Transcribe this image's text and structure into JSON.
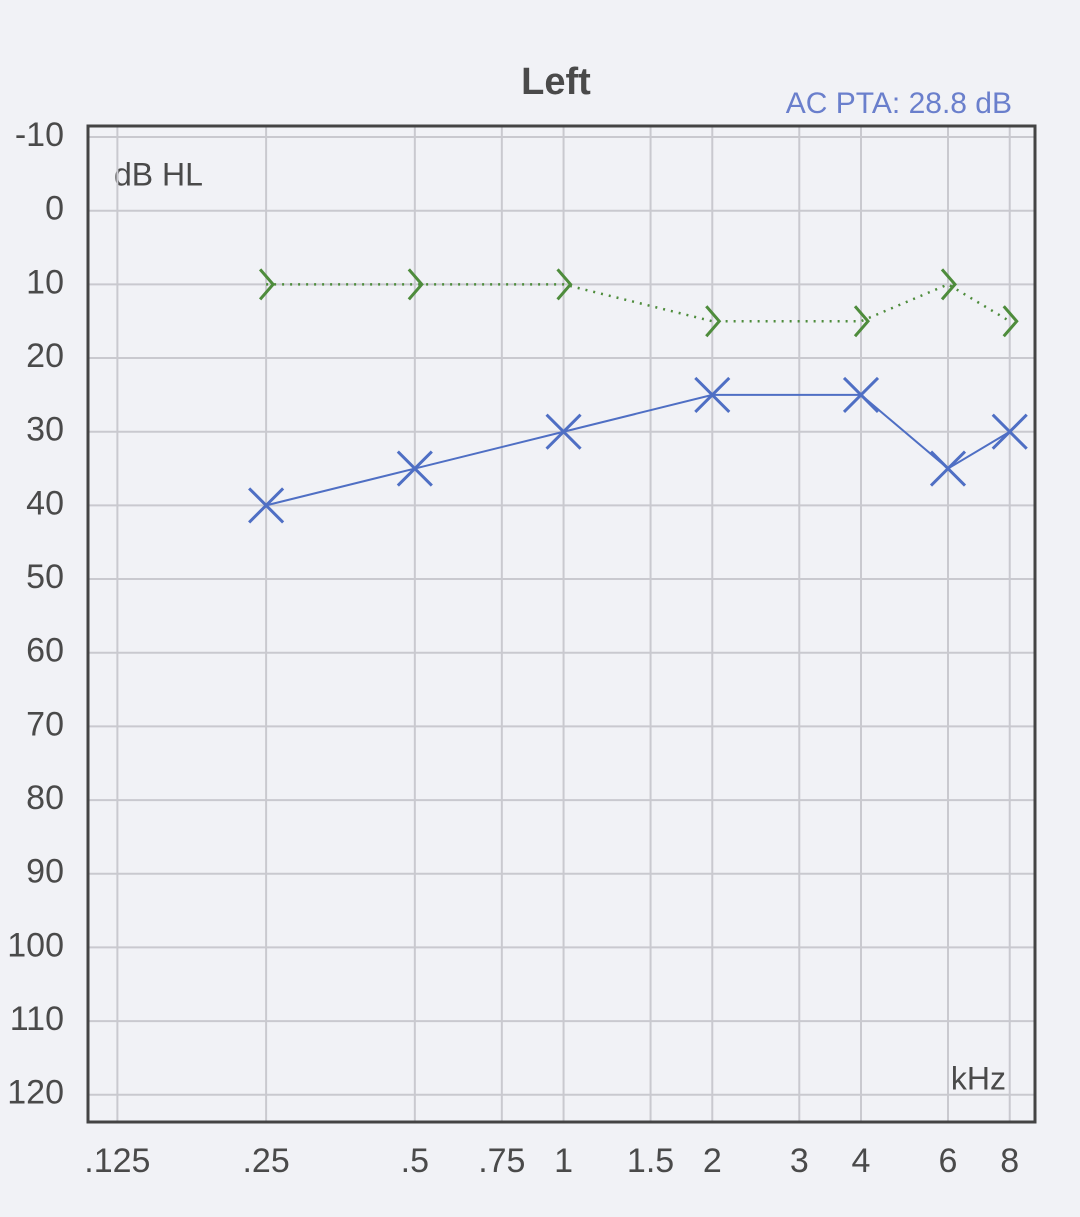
{
  "chart_data": {
    "type": "audiogram",
    "title": "Left",
    "annotation": "AC PTA: 28.8 dB",
    "ylabel": "dB HL",
    "xlabel": "kHz",
    "x": [
      0.25,
      0.5,
      1,
      2,
      4,
      6,
      8
    ],
    "series": [
      {
        "color": "#4f6fc4",
        "marker": "x",
        "dash": "solid",
        "values": [
          40,
          35,
          30,
          25,
          25,
          35,
          30
        ]
      },
      {
        "color": "#4e8c3c",
        "marker": ">",
        "dash": "dotted",
        "values": [
          10,
          10,
          10,
          15,
          15,
          10,
          15
        ]
      }
    ],
    "xscale": "log",
    "xlim": [
      0.109,
      9
    ],
    "xticks": [
      {
        "value": 0.125,
        "label": ".125"
      },
      {
        "value": 0.25,
        "label": ".25"
      },
      {
        "value": 0.5,
        "label": ".5"
      },
      {
        "value": 0.75,
        "label": ".75"
      },
      1,
      1.5,
      2,
      3,
      4,
      6,
      8
    ],
    "ylim": [
      123.7,
      -11.5
    ],
    "yticks": [
      -10,
      0,
      10,
      20,
      30,
      40,
      50,
      60,
      70,
      80,
      90,
      100,
      110,
      120
    ],
    "grid": true,
    "annotation_color": "#6a7fcc"
  }
}
